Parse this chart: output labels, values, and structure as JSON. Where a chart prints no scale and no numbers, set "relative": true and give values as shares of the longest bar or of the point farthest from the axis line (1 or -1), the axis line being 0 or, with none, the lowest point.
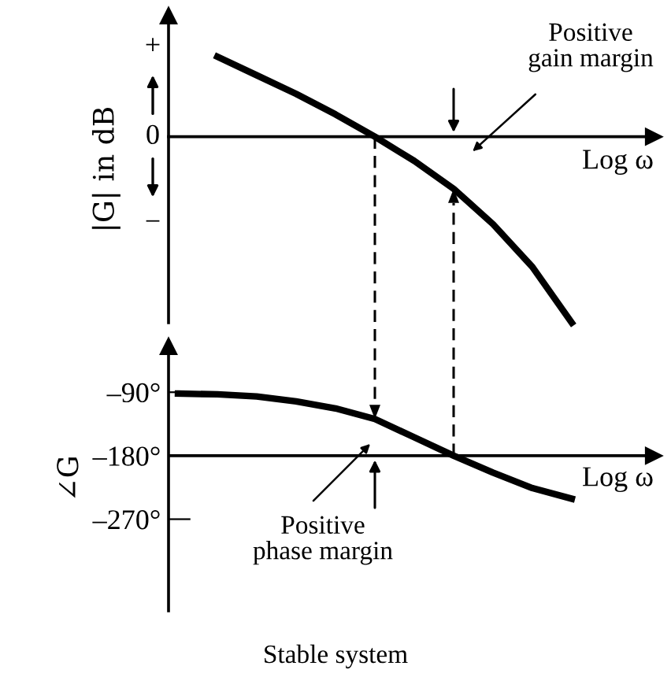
{
  "chart_data": [
    {
      "type": "line",
      "relative": true,
      "ylabel": "|G| in dB",
      "xlabel": "Log ω",
      "categories": [
        null,
        null,
        null,
        null,
        null,
        null,
        null,
        null,
        null,
        null
      ],
      "series": [
        {
          "color": "#000000",
          "values": [
            0.43,
            0.33,
            0.23,
            0.12,
            0,
            -0.13,
            -0.28,
            -0.47,
            -0.7,
            -1
          ]
        }
      ],
      "annotations": [
        "+",
        "0",
        "−",
        "Positive\ngain margin"
      ],
      "grid": false,
      "legend": false,
      "tick_labels": false
    },
    {
      "type": "line",
      "ylabel": "∠G",
      "xlabel": "Log ω",
      "categories": [
        null,
        null,
        null,
        null,
        null,
        null,
        null,
        null,
        null,
        null,
        null
      ],
      "series": [
        {
          "color": "#000000",
          "values": [
            -92,
            -93,
            -96,
            -103,
            -113,
            -128,
            -154,
            -180,
            -204,
            -226,
            -241
          ]
        }
      ],
      "ylim": [
        -400,
        -25
      ],
      "yticks": [
        {
          "value": -90,
          "label": "–90°"
        },
        {
          "value": -180,
          "label": "–180°"
        },
        {
          "value": -270,
          "label": "–270°"
        }
      ],
      "ref_lines": [
        {
          "axis": "y",
          "value": -180
        }
      ],
      "annotations": [
        "Positive\nphase margin",
        "Stable system"
      ],
      "grid": false,
      "legend": false,
      "tick_labels": "y"
    }
  ]
}
